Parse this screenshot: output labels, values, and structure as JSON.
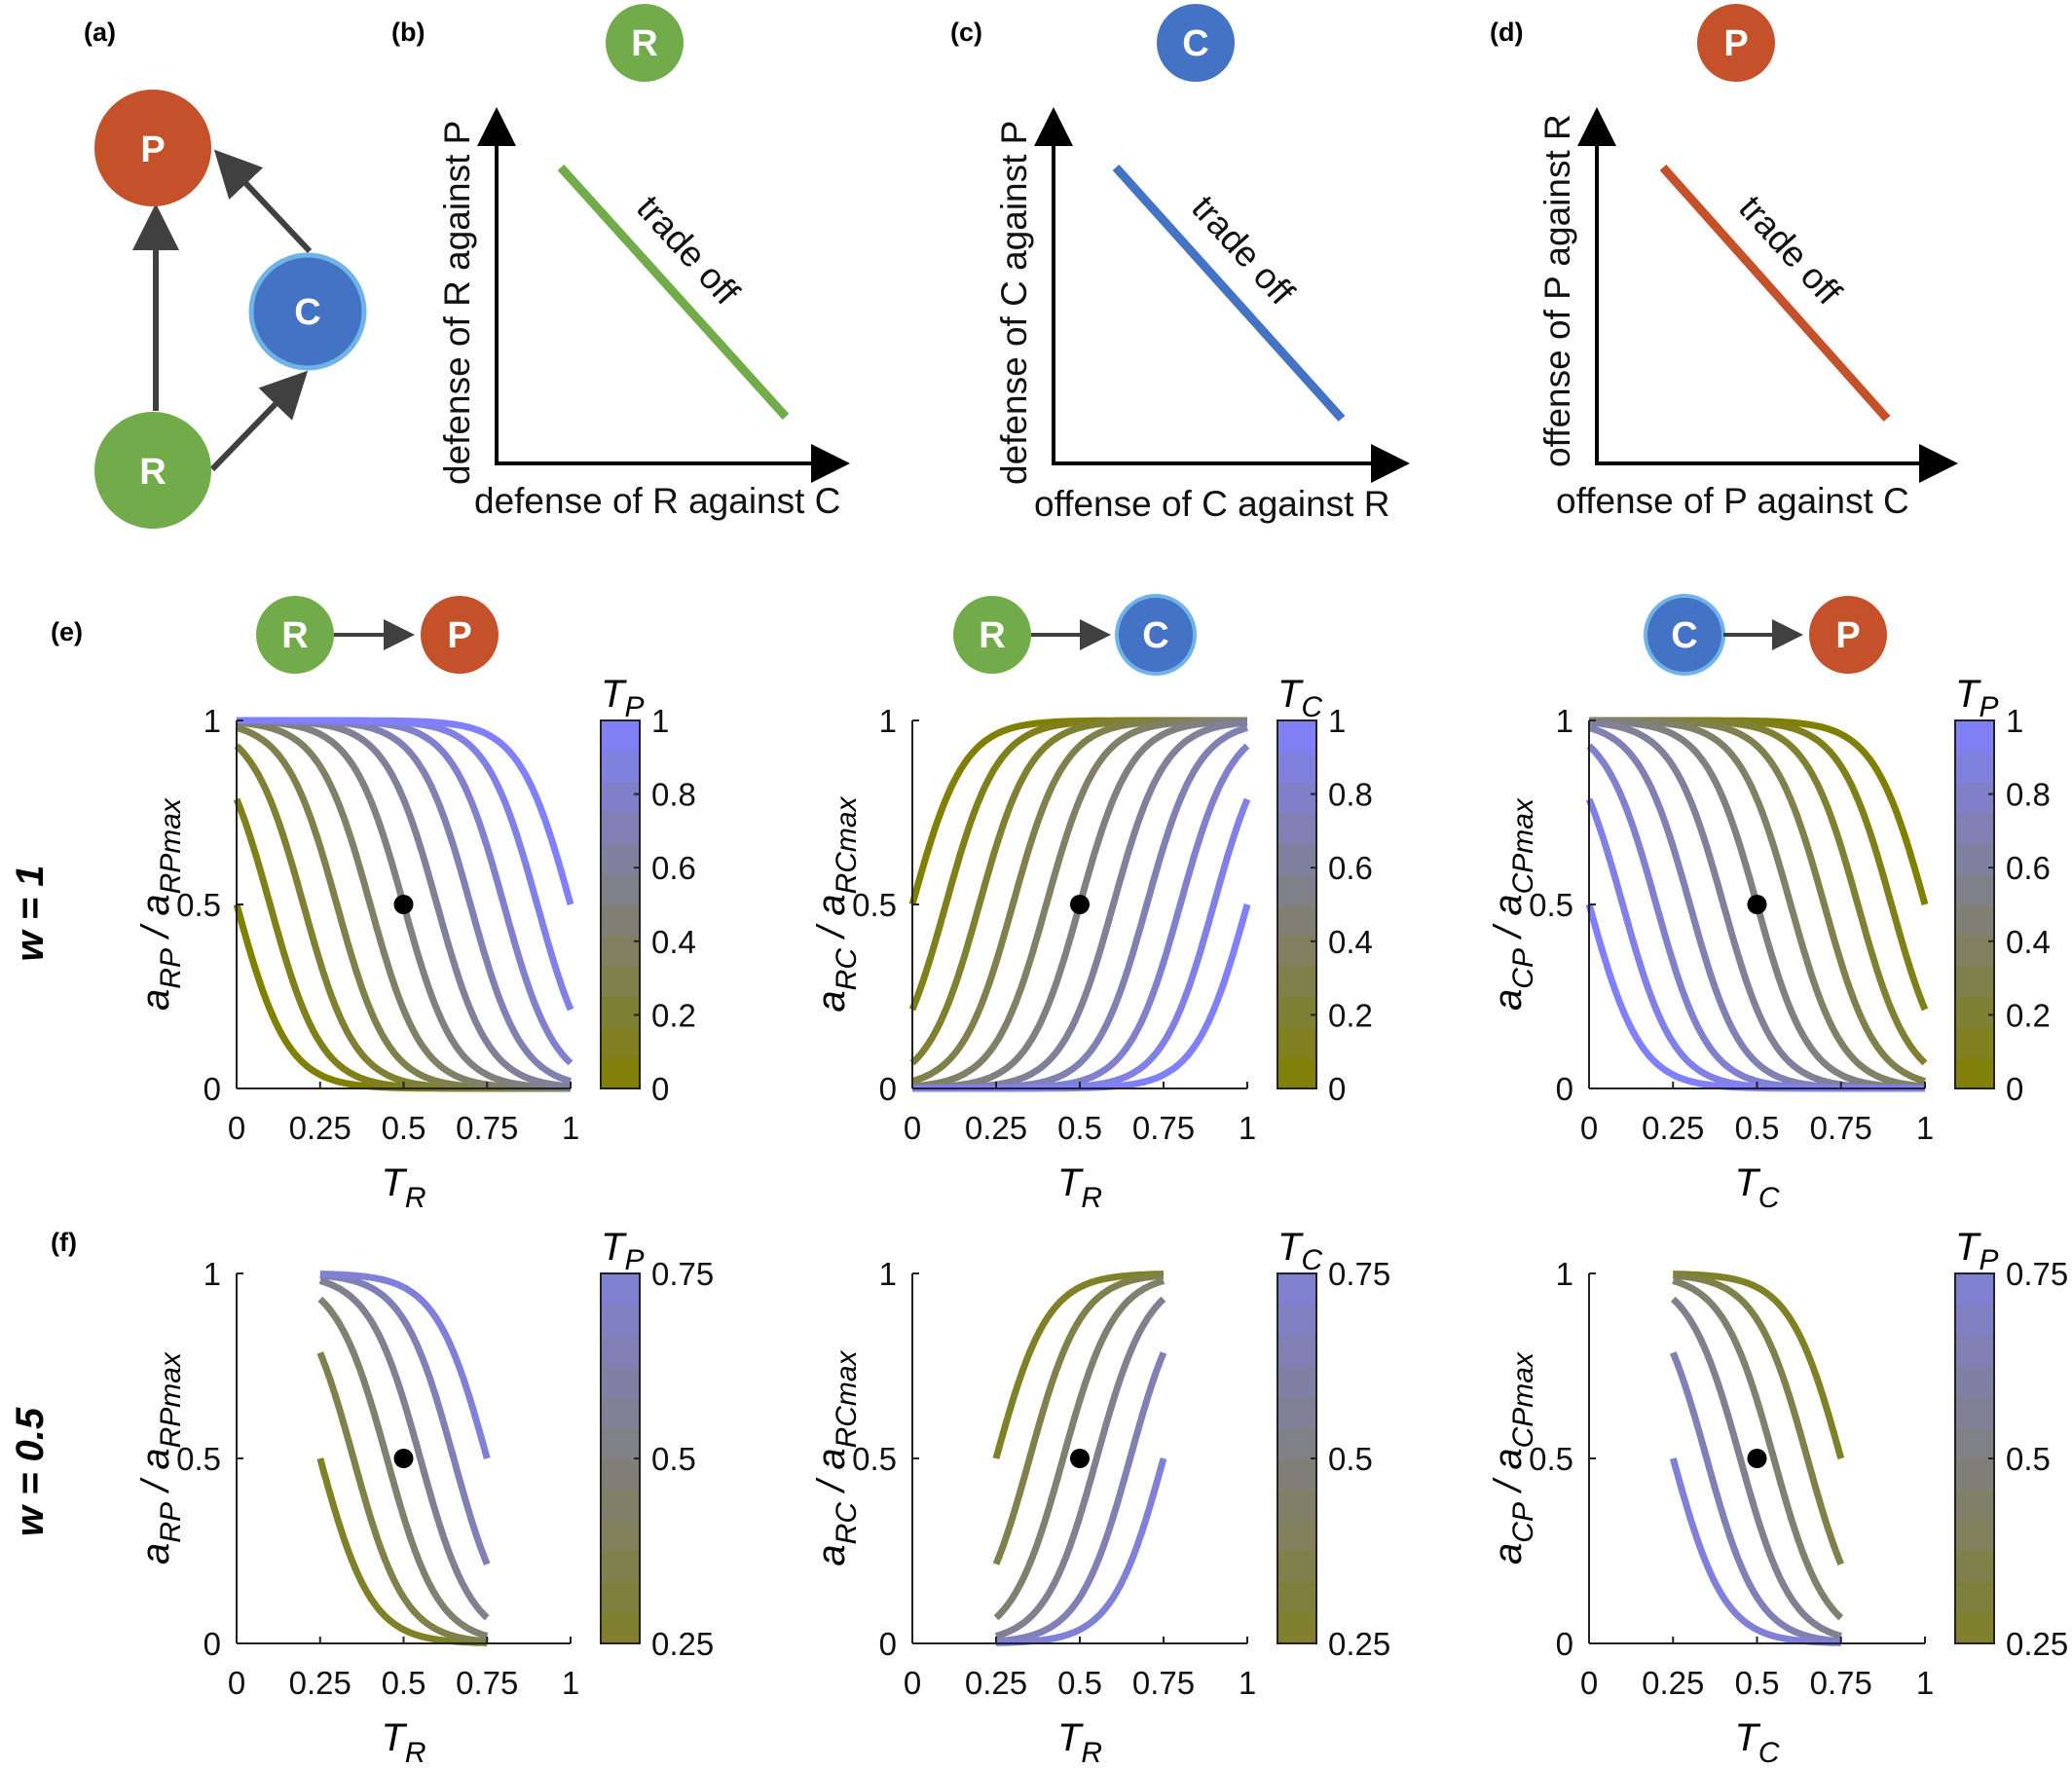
{
  "colors": {
    "R": "#72ac4a",
    "C": "#4472c4",
    "P": "#c5512a",
    "C_border": "#6fb4e8",
    "R_border": "#8cc46e",
    "arrow": "#404040",
    "olive": "#808000",
    "lavender": "#8080ff"
  },
  "panels": {
    "a": {
      "label": "(a)",
      "nodes": {
        "P": "P",
        "C": "C",
        "R": "R"
      }
    },
    "b": {
      "label": "(b)",
      "node": "R",
      "ylabel": "defense of R against P",
      "xlabel": "defense of R against C",
      "line_text": "trade off"
    },
    "c": {
      "label": "(c)",
      "node": "C",
      "ylabel": "defense of C against P",
      "xlabel": "offense of C against R",
      "line_text": "trade off"
    },
    "d": {
      "label": "(d)",
      "node": "P",
      "ylabel": "offense of P against R",
      "xlabel": "offense of P against C",
      "line_text": "trade off"
    },
    "e": {
      "label": "(e)",
      "row_label": "w = 1"
    },
    "f": {
      "label": "(f)",
      "row_label": "w = 0.5"
    }
  },
  "interaction_headers": [
    {
      "from": "R",
      "to": "P"
    },
    {
      "from": "R",
      "to": "C"
    },
    {
      "from": "C",
      "to": "P"
    }
  ],
  "chart_data": [
    {
      "id": "e1",
      "type": "line",
      "title": "R → P",
      "ylabel_main": "a",
      "ylabel_sub": "RP",
      "ylabel_den_sub": "RPmax",
      "xlabel_main": "T",
      "xlabel_sub": "R",
      "colorbar": {
        "label_main": "T",
        "label_sub": "P",
        "range": [
          0,
          1
        ],
        "ticks": [
          "0",
          "0.2",
          "0.4",
          "0.6",
          "0.8",
          "1"
        ]
      },
      "xlim": [
        0,
        1
      ],
      "ylim": [
        0,
        1
      ],
      "xticks": [
        "0",
        "0.25",
        "0.5",
        "0.75",
        "1"
      ],
      "yticks": [
        "0",
        "0.5",
        "1"
      ],
      "relation": "decreasing",
      "series_parameter": [
        0,
        0.1,
        0.2,
        0.3,
        0.4,
        0.5,
        0.6,
        0.7,
        0.8,
        0.9,
        1.0
      ],
      "domain": [
        0,
        1
      ],
      "marker": {
        "x": 0.5,
        "y": 0.5
      }
    },
    {
      "id": "e2",
      "type": "line",
      "title": "R → C",
      "ylabel_main": "a",
      "ylabel_sub": "RC",
      "ylabel_den_sub": "RCmax",
      "xlabel_main": "T",
      "xlabel_sub": "R",
      "colorbar": {
        "label_main": "T",
        "label_sub": "C",
        "range": [
          0,
          1
        ],
        "ticks": [
          "0",
          "0.2",
          "0.4",
          "0.6",
          "0.8",
          "1"
        ]
      },
      "xlim": [
        0,
        1
      ],
      "ylim": [
        0,
        1
      ],
      "xticks": [
        "0",
        "0.25",
        "0.5",
        "0.75",
        "1"
      ],
      "yticks": [
        "0",
        "0.5",
        "1"
      ],
      "relation": "increasing",
      "series_parameter": [
        0,
        0.1,
        0.2,
        0.3,
        0.4,
        0.5,
        0.6,
        0.7,
        0.8,
        0.9,
        1.0
      ],
      "domain": [
        0,
        1
      ],
      "marker": {
        "x": 0.5,
        "y": 0.5
      }
    },
    {
      "id": "e3",
      "type": "line",
      "title": "C → P",
      "ylabel_main": "a",
      "ylabel_sub": "CP",
      "ylabel_den_sub": "CPmax",
      "xlabel_main": "T",
      "xlabel_sub": "C",
      "colorbar": {
        "label_main": "T",
        "label_sub": "P",
        "range": [
          0,
          1
        ],
        "ticks": [
          "0",
          "0.2",
          "0.4",
          "0.6",
          "0.8",
          "1"
        ]
      },
      "xlim": [
        0,
        1
      ],
      "ylim": [
        0,
        1
      ],
      "xticks": [
        "0",
        "0.25",
        "0.5",
        "0.75",
        "1"
      ],
      "yticks": [
        "0",
        "0.5",
        "1"
      ],
      "relation": "decreasing_reversed",
      "series_parameter": [
        0,
        0.1,
        0.2,
        0.3,
        0.4,
        0.5,
        0.6,
        0.7,
        0.8,
        0.9,
        1.0
      ],
      "domain": [
        0,
        1
      ],
      "marker": {
        "x": 0.5,
        "y": 0.5
      }
    },
    {
      "id": "f1",
      "type": "line",
      "title": "R → P",
      "ylabel_main": "a",
      "ylabel_sub": "RP",
      "ylabel_den_sub": "RPmax",
      "xlabel_main": "T",
      "xlabel_sub": "R",
      "colorbar": {
        "label_main": "T",
        "label_sub": "P",
        "range": [
          0.25,
          0.75
        ],
        "ticks": [
          "0.25",
          "0.5",
          "0.75"
        ]
      },
      "xlim": [
        0,
        1
      ],
      "ylim": [
        0,
        1
      ],
      "xticks": [
        "0",
        "0.25",
        "0.5",
        "0.75",
        "1"
      ],
      "yticks": [
        "0",
        "0.5",
        "1"
      ],
      "relation": "decreasing",
      "series_parameter": [
        0.25,
        0.35,
        0.45,
        0.55,
        0.65,
        0.75
      ],
      "domain": [
        0.25,
        0.75
      ],
      "marker": {
        "x": 0.5,
        "y": 0.5
      }
    },
    {
      "id": "f2",
      "type": "line",
      "title": "R → C",
      "ylabel_main": "a",
      "ylabel_sub": "RC",
      "ylabel_den_sub": "RCmax",
      "xlabel_main": "T",
      "xlabel_sub": "R",
      "colorbar": {
        "label_main": "T",
        "label_sub": "C",
        "range": [
          0.25,
          0.75
        ],
        "ticks": [
          "0.25",
          "0.5",
          "0.75"
        ]
      },
      "xlim": [
        0,
        1
      ],
      "ylim": [
        0,
        1
      ],
      "xticks": [
        "0",
        "0.25",
        "0.5",
        "0.75",
        "1"
      ],
      "yticks": [
        "0",
        "0.5",
        "1"
      ],
      "relation": "increasing",
      "series_parameter": [
        0.25,
        0.35,
        0.45,
        0.55,
        0.65,
        0.75
      ],
      "domain": [
        0.25,
        0.75
      ],
      "marker": {
        "x": 0.5,
        "y": 0.5
      }
    },
    {
      "id": "f3",
      "type": "line",
      "title": "C → P",
      "ylabel_main": "a",
      "ylabel_sub": "CP",
      "ylabel_den_sub": "CPmax",
      "xlabel_main": "T",
      "xlabel_sub": "C",
      "colorbar": {
        "label_main": "T",
        "label_sub": "P",
        "range": [
          0.25,
          0.75
        ],
        "ticks": [
          "0.25",
          "0.5",
          "0.75"
        ]
      },
      "xlim": [
        0,
        1
      ],
      "ylim": [
        0,
        1
      ],
      "xticks": [
        "0",
        "0.25",
        "0.5",
        "0.75",
        "1"
      ],
      "yticks": [
        "0",
        "0.5",
        "1"
      ],
      "relation": "decreasing_reversed",
      "series_parameter": [
        0.25,
        0.35,
        0.45,
        0.55,
        0.65,
        0.75
      ],
      "domain": [
        0.25,
        0.75
      ],
      "marker": {
        "x": 0.5,
        "y": 0.5
      }
    }
  ]
}
